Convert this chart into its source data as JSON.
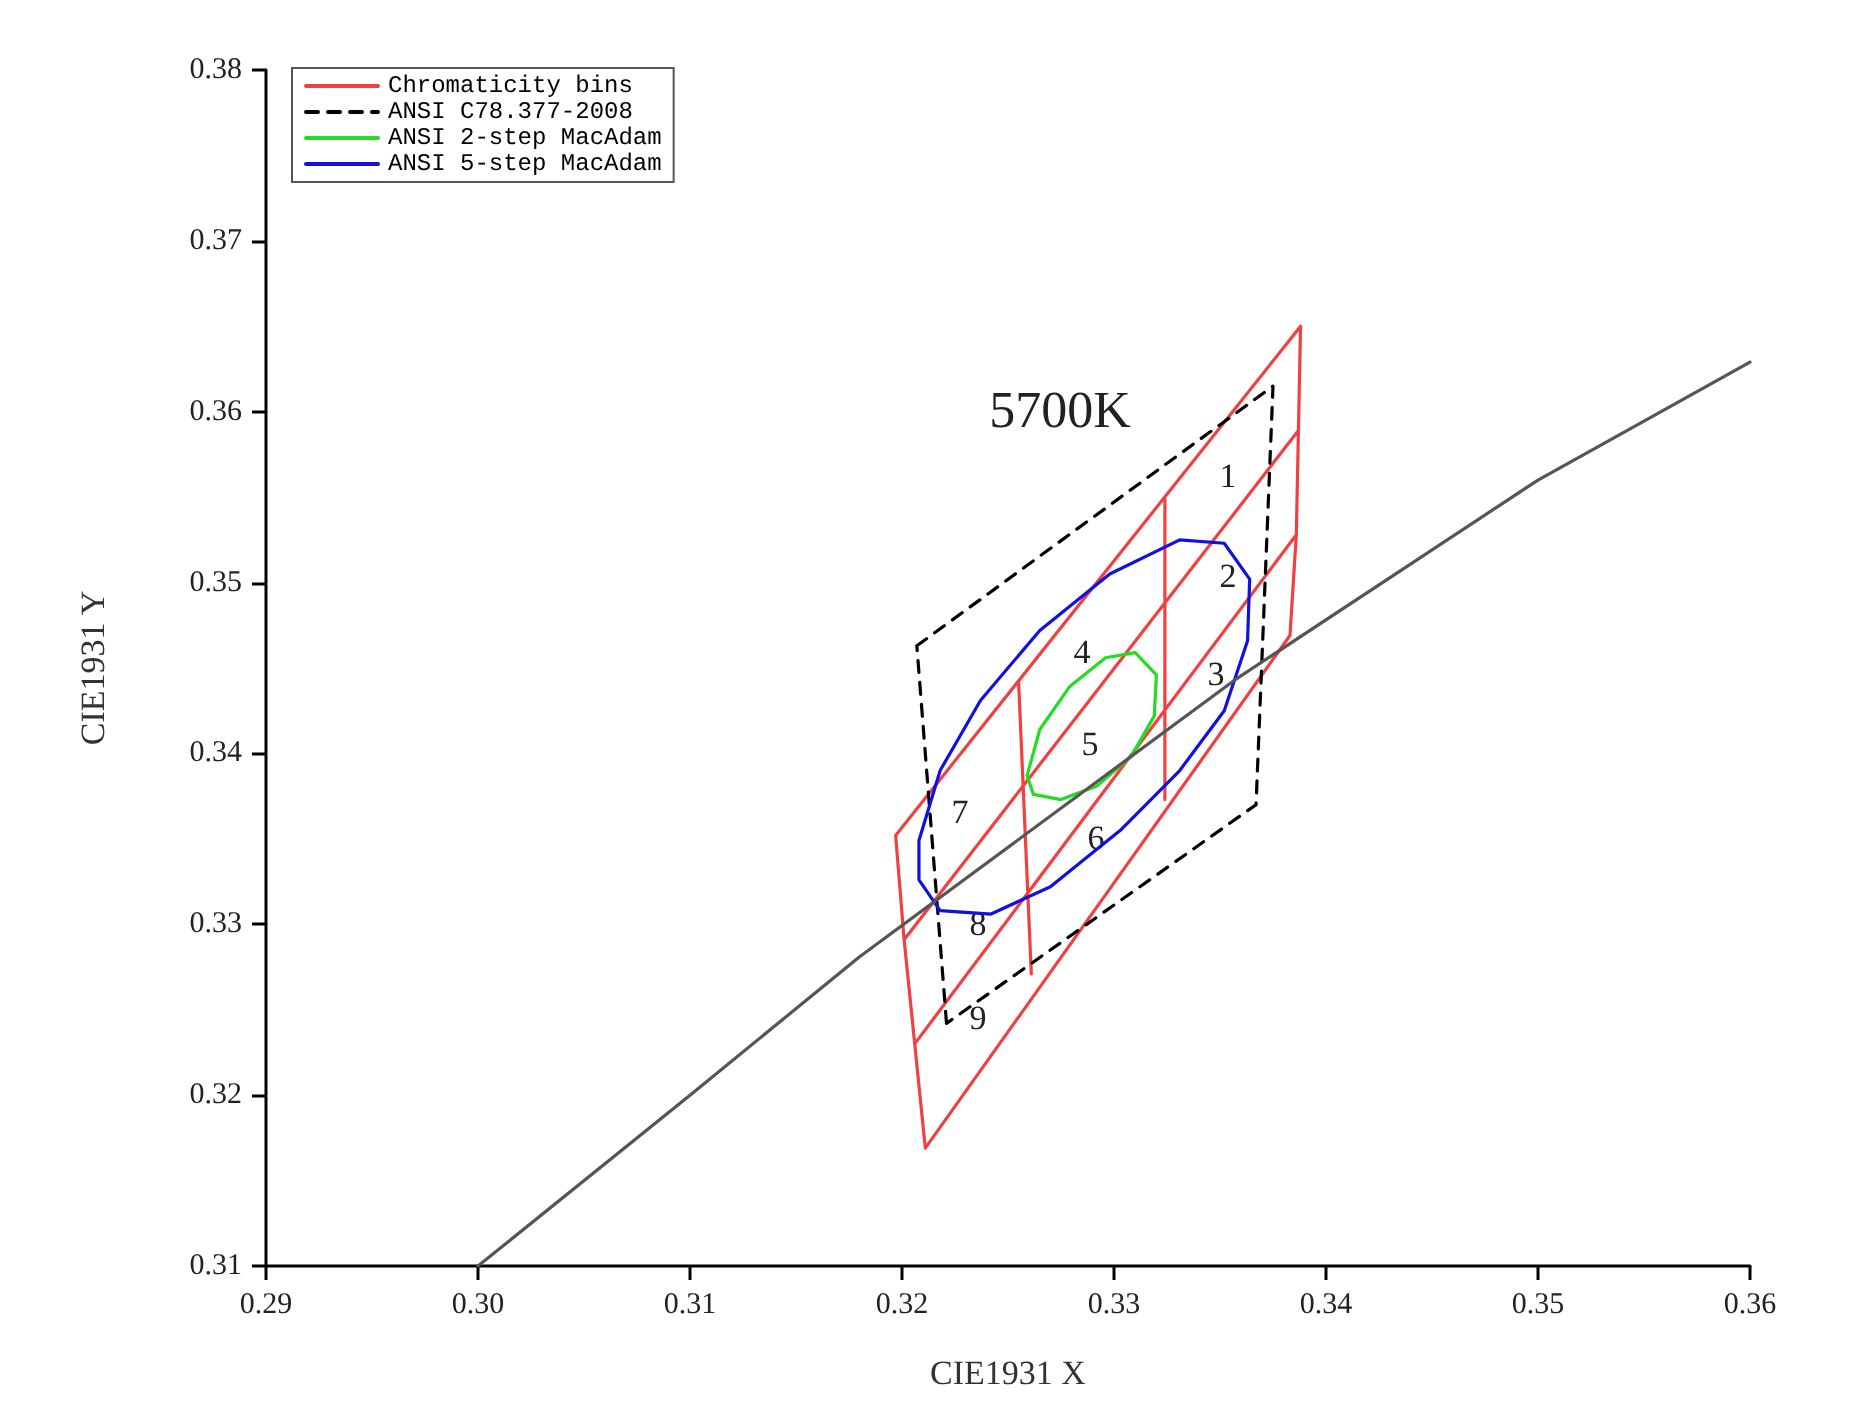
{
  "chart_data": {
    "type": "line",
    "xlabel": "CIE1931 X",
    "ylabel": "CIE1931 Y",
    "xlim": [
      0.29,
      0.36
    ],
    "xticks": [
      0.29,
      {
        "value": 0.3,
        "label": "0.30"
      },
      0.31,
      0.32,
      0.33,
      0.34,
      0.35,
      0.36
    ],
    "ylim": [
      0.31,
      0.38
    ],
    "yticks": [
      0.31,
      0.32,
      0.33,
      0.34,
      0.35,
      0.36,
      0.37,
      0.38
    ],
    "grid": false,
    "legend": "top left",
    "marker": "none",
    "series": [
      {
        "name": "Chromaticity bins",
        "color": "#f04040",
        "line_style": "solid",
        "x": [
          0.3197,
          0.3388,
          null,
          0.3201,
          0.3387,
          null,
          0.3206,
          0.3386,
          null,
          0.3211,
          0.3383,
          null,
          0.3197,
          0.3201,
          0.3206,
          0.3211,
          null,
          0.3388,
          0.3387,
          0.3386,
          0.3383,
          null,
          0.3255,
          0.3261,
          null,
          0.3324,
          0.3324
        ],
        "values": [
          0.3352,
          0.365,
          null,
          0.3291,
          0.3589,
          null,
          0.323,
          0.3528,
          null,
          0.3169,
          0.3469,
          null,
          0.3352,
          0.3291,
          0.323,
          0.3169,
          null,
          0.365,
          0.3589,
          0.3528,
          0.3469,
          null,
          0.3442,
          0.3271,
          null,
          0.3549,
          0.3373
        ]
      },
      {
        "name": "ANSI C78.377-2008",
        "color": "#000000",
        "line_style": "dashed",
        "x": [
          0.3207,
          0.3375,
          0.3367,
          0.3221,
          null,
          0.3221,
          0.3207
        ],
        "values": [
          0.3463,
          0.3615,
          0.337,
          0.3242,
          null,
          0.3242,
          0.3463
        ]
      },
      {
        "name": "ANSI 2-step MacAdam",
        "color": "#22dd22",
        "line_style": "solid",
        "x": [
          0.3259,
          0.3265,
          0.3279,
          0.3296,
          0.331,
          0.332,
          0.3319,
          0.3308,
          0.3292,
          0.3275,
          null,
          0.3292,
          0.3275,
          0.3262,
          0.3259,
          0.3265
        ],
        "values": [
          0.3387,
          0.3414,
          0.3439,
          0.3456,
          0.3459,
          0.3446,
          0.3422,
          0.3398,
          0.3381,
          0.3373,
          null,
          0.3381,
          0.3373,
          0.3376,
          0.3387,
          0.3414
        ]
      },
      {
        "name": "ANSI 5-step MacAdam",
        "color": "#1010e0",
        "line_style": "solid",
        "x": [
          0.3208,
          0.3218,
          0.3237,
          0.3265,
          0.3298,
          0.3331,
          0.3352,
          0.3364,
          0.3363,
          0.3352,
          0.3331,
          0.3303,
          0.327,
          0.3242,
          0.3218,
          0.3208,
          null,
          0.3208,
          0.3208
        ],
        "values": [
          0.3349,
          0.339,
          0.3431,
          0.3472,
          0.3505,
          0.3525,
          0.3523,
          0.3502,
          0.3466,
          0.3425,
          0.339,
          0.3355,
          0.3322,
          0.3306,
          0.3308,
          0.3326,
          null,
          0.3326,
          0.3349
        ]
      },
      {
        "color": "#555555",
        "line_style": "solid",
        "x": [
          0.3,
          0.31,
          0.318,
          0.3357,
          0.35,
          0.36
        ],
        "values": [
          0.31,
          0.32,
          0.3281,
          0.3443,
          0.356,
          0.3629
        ]
      }
    ],
    "annotations": [
      "5700K",
      "1",
      "2",
      "3",
      "4",
      "5",
      "6",
      "7",
      "8",
      "9"
    ]
  }
}
